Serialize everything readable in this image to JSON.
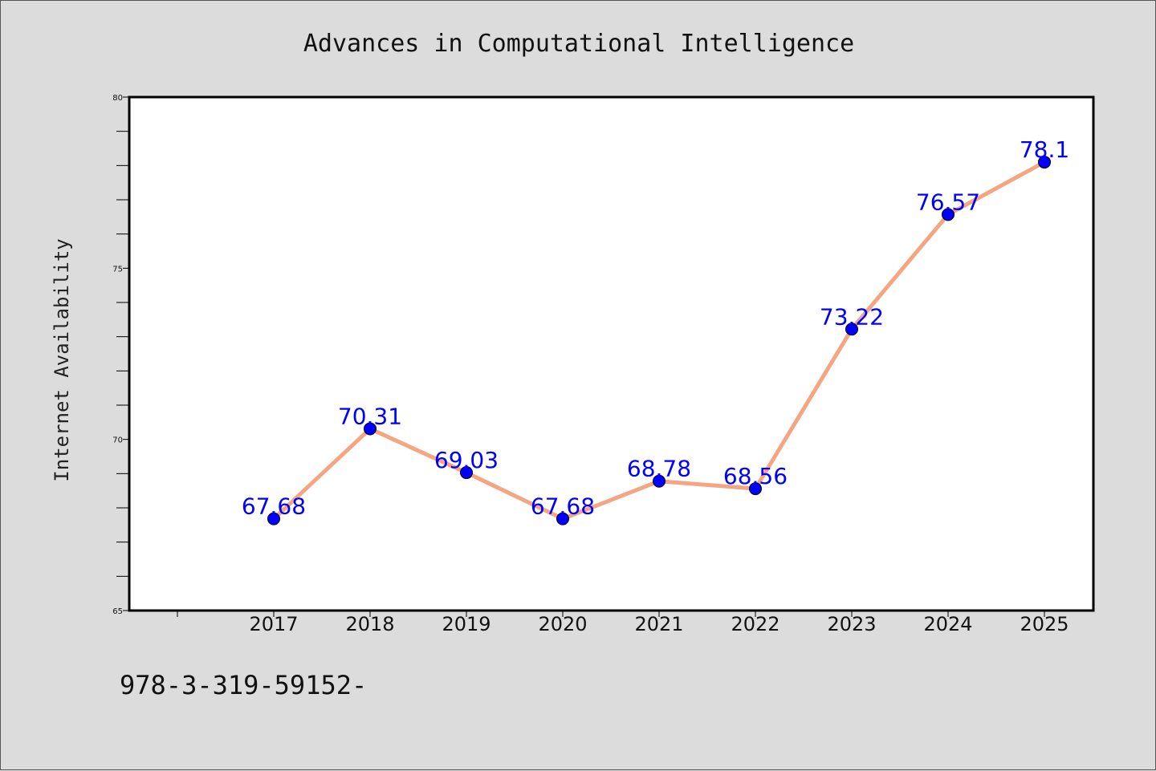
{
  "chart_data": {
    "type": "line",
    "title": "Advances in Computational Intelligence",
    "xlabel": "",
    "ylabel": "Internet Availability",
    "categories": [
      "2017",
      "2018",
      "2019",
      "2020",
      "2021",
      "2022",
      "2023",
      "2024",
      "2025"
    ],
    "series": [
      {
        "values": [
          67.68,
          70.31,
          69.03,
          67.68,
          68.78,
          68.56,
          73.22,
          76.57,
          78.1
        ],
        "labels": [
          "67.68",
          "70.31",
          "69.03",
          "67.68",
          "68.78",
          "68.56",
          "73.22",
          "76.57",
          "78.1"
        ],
        "line_color": "#f4a582",
        "marker_color": "#0000ff"
      }
    ],
    "ylim": [
      65,
      80
    ],
    "yticks": [
      "65",
      "70",
      "75",
      "80"
    ],
    "grid": false,
    "legend": "none"
  },
  "footnote": "978-3-319-59152-",
  "colors": {
    "background": "#dcdcdc",
    "plot_area": "#ffffff",
    "line": "#f4a582",
    "marker": "#0000ff",
    "data_label": "#0000ff"
  }
}
